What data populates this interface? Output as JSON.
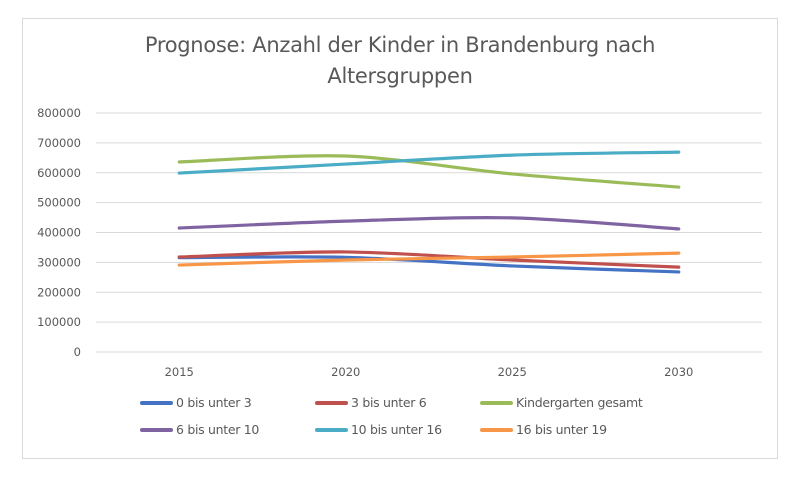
{
  "chart_data": {
    "type": "line",
    "title": "Prognose: Anzahl der Kinder in Brandenburg nach Altersgruppen",
    "title_lines": [
      "Prognose: Anzahl der Kinder in Brandenburg nach",
      "Altersgruppen"
    ],
    "xlabel": "",
    "ylabel": "",
    "categories": [
      "2015",
      "2020",
      "2025",
      "2030"
    ],
    "ylim": [
      0,
      800000
    ],
    "yticks": [
      0,
      100000,
      200000,
      300000,
      400000,
      500000,
      600000,
      700000,
      800000
    ],
    "ytick_labels": [
      "0",
      "100000",
      "200000",
      "300000",
      "400000",
      "500000",
      "600000",
      "700000",
      "800000"
    ],
    "grid": true,
    "legend_position": "bottom",
    "series": [
      {
        "name": "0 bis unter 3",
        "color": "#4472C4",
        "values": [
          316000,
          317000,
          288000,
          268000
        ]
      },
      {
        "name": "3 bis unter 6",
        "color": "#C0504D",
        "values": [
          318000,
          335000,
          308000,
          284000
        ]
      },
      {
        "name": "Kindergarten gesamt",
        "color": "#9BBB59",
        "values": [
          636000,
          656000,
          596000,
          552000
        ]
      },
      {
        "name": "6 bis unter 10",
        "color": "#8064A2",
        "values": [
          415000,
          438000,
          449000,
          412000
        ]
      },
      {
        "name": "10 bis unter 16",
        "color": "#4BACC6",
        "values": [
          599000,
          629000,
          659000,
          669000
        ]
      },
      {
        "name": "16 bis unter 19",
        "color": "#F79646",
        "values": [
          291000,
          308000,
          318000,
          331000
        ]
      }
    ]
  }
}
